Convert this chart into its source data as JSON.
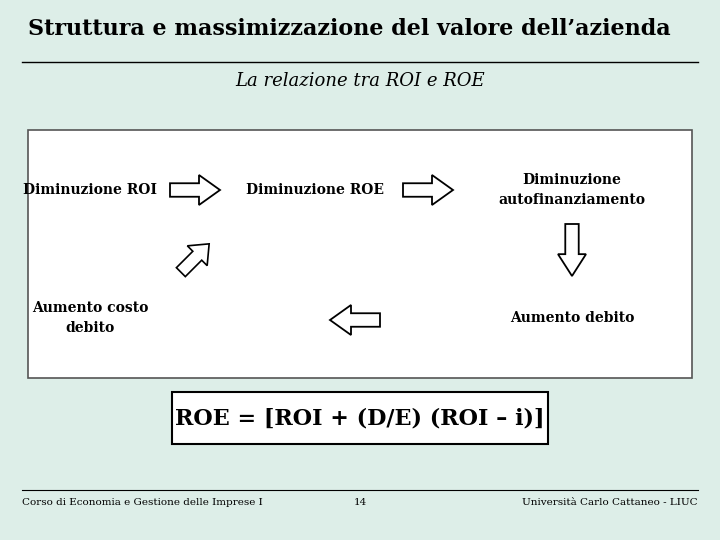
{
  "title": "Struttura e massimizzazione del valore dell’azienda",
  "subtitle": "La relazione tra ROI e ROE",
  "background_color": "#ddeee8",
  "title_fontsize": 16,
  "subtitle_fontsize": 13,
  "label_fontsize": 10,
  "formula_fontsize": 16,
  "footer_fontsize": 7.5,
  "footer_left": "Corso di Economia e Gestione delle Imprese I",
  "footer_center": "14",
  "footer_right": "Università Carlo Cattaneo - LIUC",
  "box1_label": "Diminuzione ROI",
  "box2_label": "Diminuzione ROE",
  "box3_label": "Diminuzione\nautofinanziamento",
  "box4_label": "Aumento costo\ndebito",
  "box5_label": "Aumento debito",
  "formula": "ROE = [ROI + (D/E) (ROI – i)]"
}
